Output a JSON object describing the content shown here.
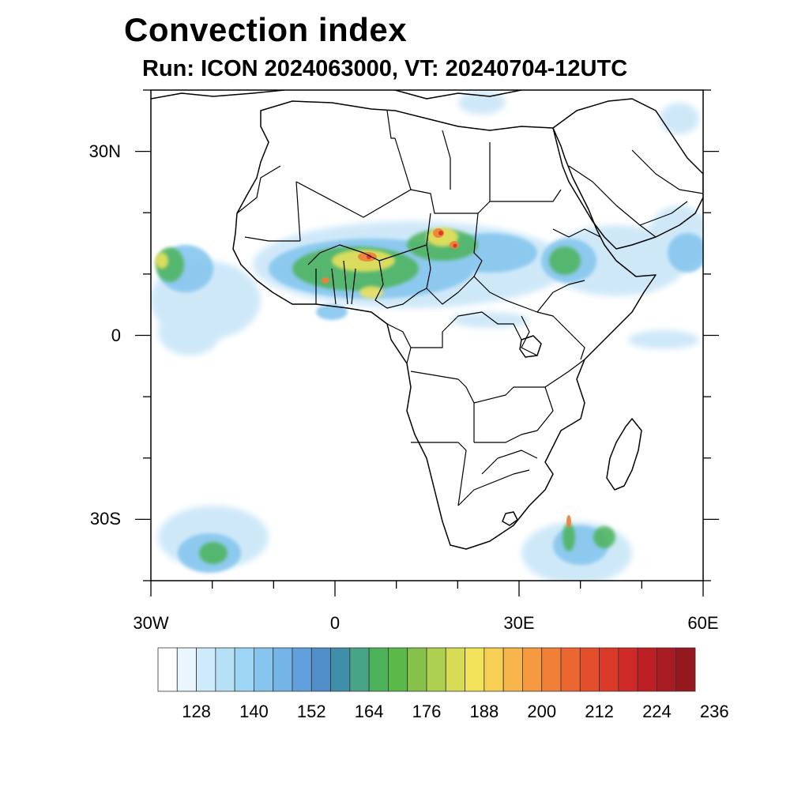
{
  "header": {
    "title": "Convection index",
    "subtitle": "Run: ICON 2024063000,  VT: 20240704-12UTC"
  },
  "map": {
    "region": "Africa",
    "lon_range": [
      -30,
      60
    ],
    "lat_range": [
      -40,
      40
    ],
    "x_ticks": [
      {
        "lon": -30,
        "label": "30W"
      },
      {
        "lon": 0,
        "label": "0"
      },
      {
        "lon": 30,
        "label": "30E"
      },
      {
        "lon": 60,
        "label": "60E"
      }
    ],
    "y_ticks": [
      {
        "lat": 30,
        "label": "30N"
      },
      {
        "lat": 0,
        "label": "0"
      },
      {
        "lat": -30,
        "label": "30S"
      }
    ]
  },
  "colorbar": {
    "labels": [
      "128",
      "140",
      "152",
      "164",
      "176",
      "188",
      "200",
      "212",
      "224",
      "236"
    ],
    "colors": [
      "#ffffff",
      "#eaf6fd",
      "#cfeaf9",
      "#b6e0f6",
      "#9dd6f4",
      "#86c6ee",
      "#75b4e6",
      "#62a0dd",
      "#4f8ec8",
      "#3f8fa8",
      "#48a486",
      "#4cb35a",
      "#5bb94a",
      "#86c24b",
      "#aed050",
      "#d8dc54",
      "#f2e35a",
      "#f8cf55",
      "#f7b54b",
      "#f59a40",
      "#f08038",
      "#eb6630",
      "#e34f2a",
      "#dc3a28",
      "#cf2a28",
      "#bd1f25",
      "#a91b22",
      "#95181f"
    ]
  }
}
